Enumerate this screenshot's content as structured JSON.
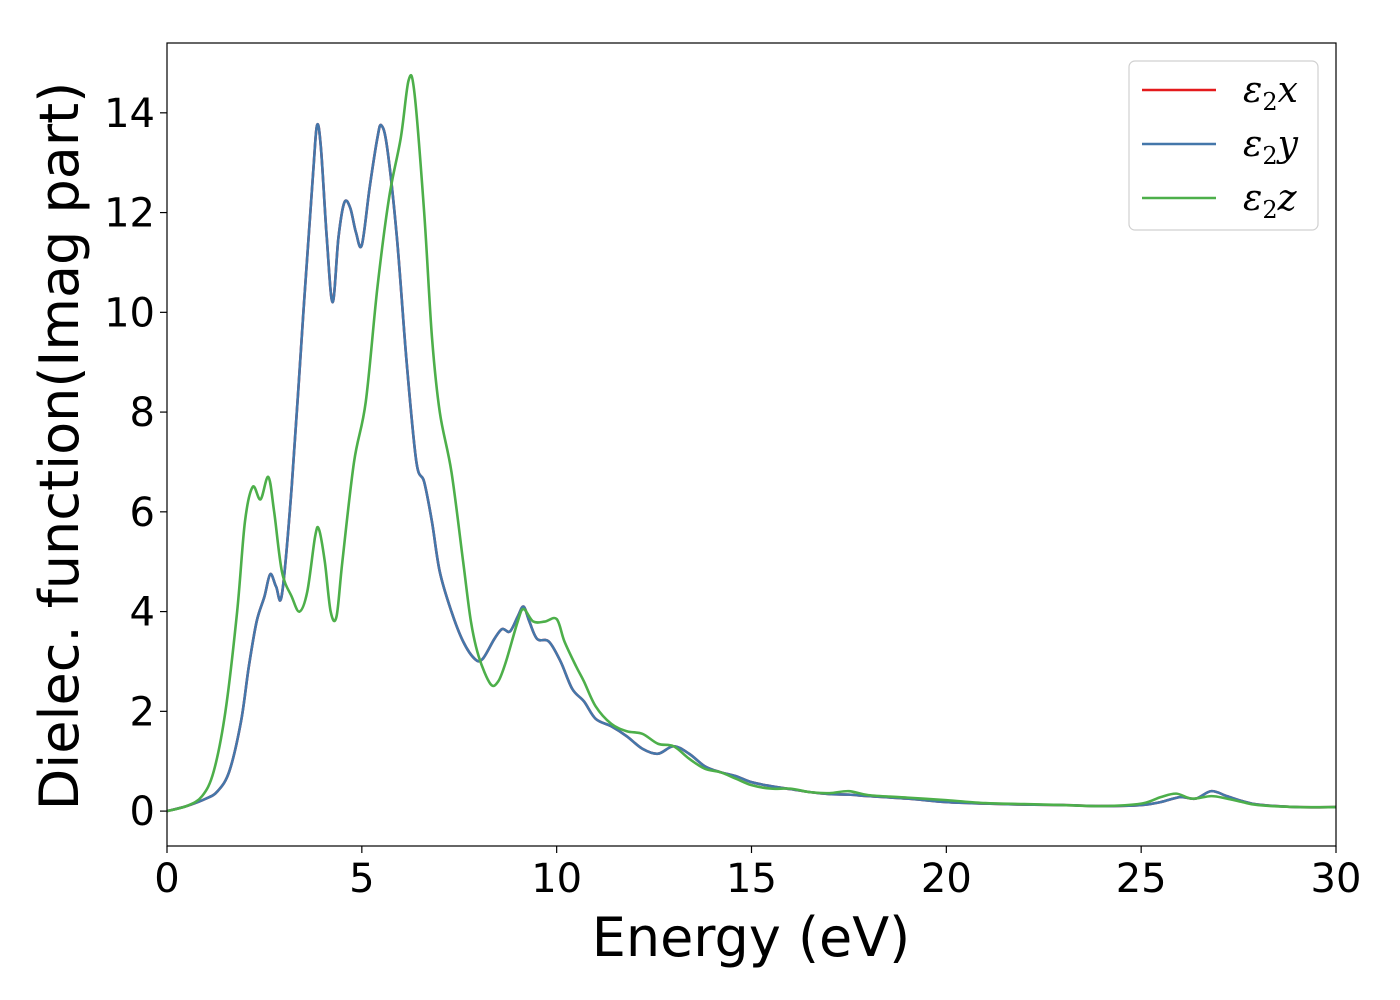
{
  "chart_data": {
    "type": "line",
    "title": "",
    "xlabel": "Energy (eV)",
    "ylabel": "Dielec. function(Imag part)",
    "xlim": [
      0,
      30
    ],
    "ylim": [
      -0.7,
      15.4
    ],
    "xticks": [
      0,
      5,
      10,
      15,
      20,
      25,
      30
    ],
    "yticks": [
      0,
      2,
      4,
      6,
      8,
      10,
      12,
      14
    ],
    "xtick_labels": [
      "0",
      "5",
      "10",
      "15",
      "20",
      "25",
      "30"
    ],
    "ytick_labels": [
      "0",
      "2",
      "4",
      "6",
      "8",
      "10",
      "12",
      "14"
    ],
    "grid": false,
    "legend_position": "top-right",
    "series": [
      {
        "name": "ε2x",
        "legend": {
          "base": "ε",
          "sub": "2",
          "tail": "x"
        },
        "color": "#e41a1c",
        "points": [
          [
            0,
            0
          ],
          [
            0.5,
            0.1
          ],
          [
            1.0,
            0.25
          ],
          [
            1.3,
            0.4
          ],
          [
            1.6,
            0.8
          ],
          [
            1.9,
            1.8
          ],
          [
            2.1,
            2.9
          ],
          [
            2.3,
            3.8
          ],
          [
            2.5,
            4.3
          ],
          [
            2.65,
            4.75
          ],
          [
            2.8,
            4.5
          ],
          [
            2.95,
            4.35
          ],
          [
            3.2,
            6.5
          ],
          [
            3.5,
            10.0
          ],
          [
            3.75,
            12.8
          ],
          [
            3.85,
            13.75
          ],
          [
            3.95,
            13.3
          ],
          [
            4.1,
            11.5
          ],
          [
            4.25,
            10.2
          ],
          [
            4.4,
            11.5
          ],
          [
            4.55,
            12.2
          ],
          [
            4.7,
            12.1
          ],
          [
            4.85,
            11.6
          ],
          [
            5.0,
            11.35
          ],
          [
            5.2,
            12.5
          ],
          [
            5.4,
            13.5
          ],
          [
            5.5,
            13.75
          ],
          [
            5.65,
            13.3
          ],
          [
            5.9,
            11.5
          ],
          [
            6.15,
            9.0
          ],
          [
            6.4,
            7.0
          ],
          [
            6.6,
            6.6
          ],
          [
            6.8,
            5.8
          ],
          [
            7.0,
            4.8
          ],
          [
            7.3,
            4.0
          ],
          [
            7.6,
            3.4
          ],
          [
            7.9,
            3.05
          ],
          [
            8.1,
            3.05
          ],
          [
            8.4,
            3.45
          ],
          [
            8.6,
            3.65
          ],
          [
            8.8,
            3.6
          ],
          [
            9.0,
            3.9
          ],
          [
            9.15,
            4.1
          ],
          [
            9.3,
            3.8
          ],
          [
            9.5,
            3.45
          ],
          [
            9.8,
            3.4
          ],
          [
            10.1,
            3.0
          ],
          [
            10.4,
            2.45
          ],
          [
            10.7,
            2.2
          ],
          [
            11.0,
            1.85
          ],
          [
            11.4,
            1.7
          ],
          [
            11.8,
            1.5
          ],
          [
            12.2,
            1.25
          ],
          [
            12.6,
            1.15
          ],
          [
            13.0,
            1.3
          ],
          [
            13.4,
            1.15
          ],
          [
            13.8,
            0.9
          ],
          [
            14.2,
            0.78
          ],
          [
            14.6,
            0.7
          ],
          [
            15.0,
            0.58
          ],
          [
            15.5,
            0.5
          ],
          [
            16.0,
            0.44
          ],
          [
            16.5,
            0.38
          ],
          [
            17.0,
            0.34
          ],
          [
            17.5,
            0.33
          ],
          [
            18.0,
            0.3
          ],
          [
            19.0,
            0.25
          ],
          [
            20.0,
            0.18
          ],
          [
            21.0,
            0.15
          ],
          [
            22.0,
            0.13
          ],
          [
            23.0,
            0.12
          ],
          [
            24.0,
            0.1
          ],
          [
            25.0,
            0.12
          ],
          [
            25.5,
            0.18
          ],
          [
            26.0,
            0.28
          ],
          [
            26.4,
            0.25
          ],
          [
            26.8,
            0.4
          ],
          [
            27.2,
            0.3
          ],
          [
            27.6,
            0.2
          ],
          [
            28.0,
            0.13
          ],
          [
            29.0,
            0.08
          ],
          [
            30.0,
            0.08
          ]
        ]
      },
      {
        "name": "ε2y",
        "legend": {
          "base": "ε",
          "sub": "2",
          "tail": "y"
        },
        "color": "#4477aa",
        "points": [
          [
            0,
            0
          ],
          [
            0.5,
            0.1
          ],
          [
            1.0,
            0.25
          ],
          [
            1.3,
            0.4
          ],
          [
            1.6,
            0.8
          ],
          [
            1.9,
            1.8
          ],
          [
            2.1,
            2.9
          ],
          [
            2.3,
            3.8
          ],
          [
            2.5,
            4.3
          ],
          [
            2.65,
            4.75
          ],
          [
            2.8,
            4.5
          ],
          [
            2.95,
            4.35
          ],
          [
            3.2,
            6.5
          ],
          [
            3.5,
            10.0
          ],
          [
            3.75,
            12.8
          ],
          [
            3.85,
            13.75
          ],
          [
            3.95,
            13.3
          ],
          [
            4.1,
            11.5
          ],
          [
            4.25,
            10.2
          ],
          [
            4.4,
            11.5
          ],
          [
            4.55,
            12.2
          ],
          [
            4.7,
            12.1
          ],
          [
            4.85,
            11.6
          ],
          [
            5.0,
            11.35
          ],
          [
            5.2,
            12.5
          ],
          [
            5.4,
            13.5
          ],
          [
            5.5,
            13.75
          ],
          [
            5.65,
            13.3
          ],
          [
            5.9,
            11.5
          ],
          [
            6.15,
            9.0
          ],
          [
            6.4,
            7.0
          ],
          [
            6.6,
            6.6
          ],
          [
            6.8,
            5.8
          ],
          [
            7.0,
            4.8
          ],
          [
            7.3,
            4.0
          ],
          [
            7.6,
            3.4
          ],
          [
            7.9,
            3.05
          ],
          [
            8.1,
            3.05
          ],
          [
            8.4,
            3.45
          ],
          [
            8.6,
            3.65
          ],
          [
            8.8,
            3.6
          ],
          [
            9.0,
            3.9
          ],
          [
            9.15,
            4.1
          ],
          [
            9.3,
            3.8
          ],
          [
            9.5,
            3.45
          ],
          [
            9.8,
            3.4
          ],
          [
            10.1,
            3.0
          ],
          [
            10.4,
            2.45
          ],
          [
            10.7,
            2.2
          ],
          [
            11.0,
            1.85
          ],
          [
            11.4,
            1.7
          ],
          [
            11.8,
            1.5
          ],
          [
            12.2,
            1.25
          ],
          [
            12.6,
            1.15
          ],
          [
            13.0,
            1.3
          ],
          [
            13.4,
            1.15
          ],
          [
            13.8,
            0.9
          ],
          [
            14.2,
            0.78
          ],
          [
            14.6,
            0.7
          ],
          [
            15.0,
            0.58
          ],
          [
            15.5,
            0.5
          ],
          [
            16.0,
            0.44
          ],
          [
            16.5,
            0.38
          ],
          [
            17.0,
            0.34
          ],
          [
            17.5,
            0.33
          ],
          [
            18.0,
            0.3
          ],
          [
            19.0,
            0.25
          ],
          [
            20.0,
            0.18
          ],
          [
            21.0,
            0.15
          ],
          [
            22.0,
            0.13
          ],
          [
            23.0,
            0.12
          ],
          [
            24.0,
            0.1
          ],
          [
            25.0,
            0.12
          ],
          [
            25.5,
            0.18
          ],
          [
            26.0,
            0.28
          ],
          [
            26.4,
            0.25
          ],
          [
            26.8,
            0.4
          ],
          [
            27.2,
            0.3
          ],
          [
            27.6,
            0.2
          ],
          [
            28.0,
            0.13
          ],
          [
            29.0,
            0.08
          ],
          [
            30.0,
            0.08
          ]
        ]
      },
      {
        "name": "ε2z",
        "legend": {
          "base": "ε",
          "sub": "2",
          "tail": "z"
        },
        "color": "#4daf4a",
        "points": [
          [
            0,
            0
          ],
          [
            0.5,
            0.1
          ],
          [
            0.9,
            0.3
          ],
          [
            1.2,
            0.8
          ],
          [
            1.5,
            2.0
          ],
          [
            1.8,
            4.0
          ],
          [
            2.0,
            5.8
          ],
          [
            2.2,
            6.5
          ],
          [
            2.4,
            6.25
          ],
          [
            2.6,
            6.7
          ],
          [
            2.75,
            6.0
          ],
          [
            2.95,
            4.8
          ],
          [
            3.2,
            4.3
          ],
          [
            3.4,
            4.0
          ],
          [
            3.6,
            4.4
          ],
          [
            3.8,
            5.5
          ],
          [
            3.9,
            5.65
          ],
          [
            4.05,
            5.0
          ],
          [
            4.2,
            4.0
          ],
          [
            4.35,
            3.9
          ],
          [
            4.5,
            5.0
          ],
          [
            4.8,
            7.0
          ],
          [
            5.1,
            8.2
          ],
          [
            5.4,
            10.5
          ],
          [
            5.7,
            12.3
          ],
          [
            6.0,
            13.5
          ],
          [
            6.2,
            14.65
          ],
          [
            6.35,
            14.4
          ],
          [
            6.6,
            12.0
          ],
          [
            6.8,
            9.5
          ],
          [
            7.0,
            8.0
          ],
          [
            7.3,
            6.8
          ],
          [
            7.6,
            5.0
          ],
          [
            7.8,
            3.8
          ],
          [
            8.0,
            3.1
          ],
          [
            8.3,
            2.55
          ],
          [
            8.5,
            2.6
          ],
          [
            8.7,
            3.0
          ],
          [
            9.0,
            3.8
          ],
          [
            9.15,
            4.05
          ],
          [
            9.4,
            3.8
          ],
          [
            9.7,
            3.8
          ],
          [
            10.0,
            3.85
          ],
          [
            10.2,
            3.4
          ],
          [
            10.5,
            2.9
          ],
          [
            10.7,
            2.6
          ],
          [
            11.0,
            2.1
          ],
          [
            11.4,
            1.75
          ],
          [
            11.8,
            1.6
          ],
          [
            12.2,
            1.55
          ],
          [
            12.6,
            1.35
          ],
          [
            13.0,
            1.3
          ],
          [
            13.4,
            1.05
          ],
          [
            13.8,
            0.85
          ],
          [
            14.2,
            0.78
          ],
          [
            14.6,
            0.65
          ],
          [
            15.0,
            0.52
          ],
          [
            15.5,
            0.45
          ],
          [
            16.0,
            0.45
          ],
          [
            16.5,
            0.38
          ],
          [
            17.0,
            0.36
          ],
          [
            17.5,
            0.4
          ],
          [
            18.0,
            0.32
          ],
          [
            19.0,
            0.27
          ],
          [
            20.0,
            0.22
          ],
          [
            21.0,
            0.16
          ],
          [
            22.0,
            0.14
          ],
          [
            23.0,
            0.12
          ],
          [
            24.0,
            0.1
          ],
          [
            25.0,
            0.15
          ],
          [
            25.5,
            0.28
          ],
          [
            25.9,
            0.35
          ],
          [
            26.3,
            0.25
          ],
          [
            26.8,
            0.3
          ],
          [
            27.2,
            0.25
          ],
          [
            27.6,
            0.18
          ],
          [
            28.0,
            0.12
          ],
          [
            29.0,
            0.08
          ],
          [
            30.0,
            0.08
          ]
        ]
      }
    ]
  }
}
